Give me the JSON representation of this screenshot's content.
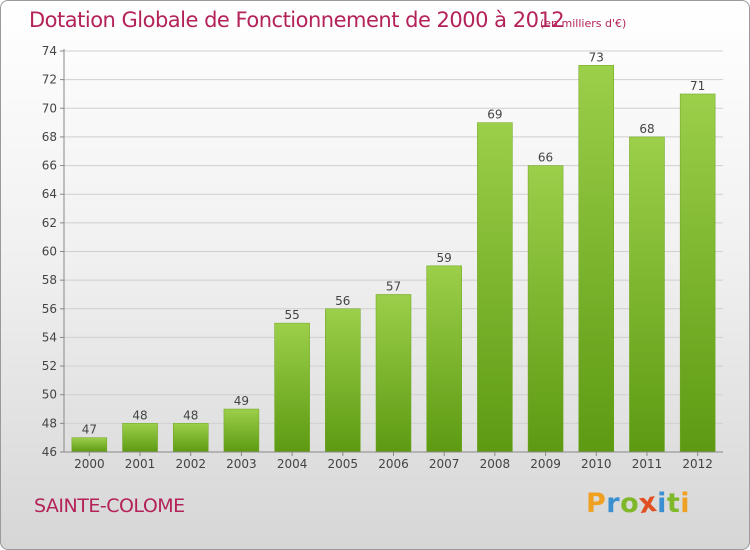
{
  "title": "Dotation Globale de Fonctionnement de 2000 à 2012",
  "unit_note": "(en milliers d'€)",
  "commune": "SAINTE-COLOME",
  "logo": {
    "letters": [
      "P",
      "r",
      "o",
      "x",
      "i",
      "t",
      "i"
    ],
    "colors": [
      "#f0a020",
      "#3a8fd0",
      "#7fb82a",
      "#e05020",
      "#3a8fd0",
      "#7fb82a",
      "#f0a020"
    ]
  },
  "chart_data": {
    "type": "bar",
    "categories": [
      "2000",
      "2001",
      "2002",
      "2003",
      "2004",
      "2005",
      "2006",
      "2007",
      "2008",
      "2009",
      "2010",
      "2011",
      "2012"
    ],
    "values": [
      47,
      48,
      48,
      49,
      55,
      56,
      57,
      59,
      69,
      66,
      73,
      68,
      71
    ],
    "ylim": [
      46,
      74
    ],
    "yticks": [
      46,
      48,
      50,
      52,
      54,
      56,
      58,
      60,
      62,
      64,
      66,
      68,
      70,
      72,
      74
    ],
    "grid": true,
    "colors": {
      "bar_top": "#9ccf4a",
      "bar_bottom": "#5d9a12",
      "grid": "#cfcfcf"
    }
  }
}
